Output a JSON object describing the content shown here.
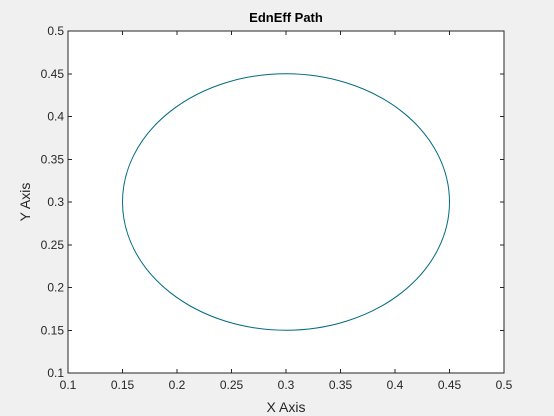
{
  "chart_data": {
    "type": "line",
    "title": "EdnEff Path",
    "xlabel": "X Axis",
    "ylabel": "Y Axis",
    "xlim": [
      0.1,
      0.5
    ],
    "ylim": [
      0.1,
      0.5
    ],
    "x_ticks": [
      "0.1",
      "0.15",
      "0.2",
      "0.25",
      "0.3",
      "0.35",
      "0.4",
      "0.45",
      "0.5"
    ],
    "y_ticks": [
      "0.1",
      "0.15",
      "0.2",
      "0.25",
      "0.3",
      "0.35",
      "0.4",
      "0.45",
      "0.5"
    ],
    "grid": false,
    "series": [
      {
        "color": "#006a80",
        "shape": "circle",
        "center": [
          0.3,
          0.3
        ],
        "radius": 0.15,
        "x": [
          0.45,
          0.4299,
          0.375,
          0.3,
          0.225,
          0.1701,
          0.15,
          0.1701,
          0.225,
          0.3,
          0.375,
          0.4299,
          0.45
        ],
        "y": [
          0.3,
          0.375,
          0.4299,
          0.45,
          0.4299,
          0.375,
          0.3,
          0.225,
          0.1701,
          0.15,
          0.1701,
          0.225,
          0.3
        ]
      }
    ]
  },
  "colors": {
    "figure_background": "#f0f0f0",
    "axes_background": "#ffffff",
    "axis_color": "#262626",
    "line_color": "#006a80"
  }
}
